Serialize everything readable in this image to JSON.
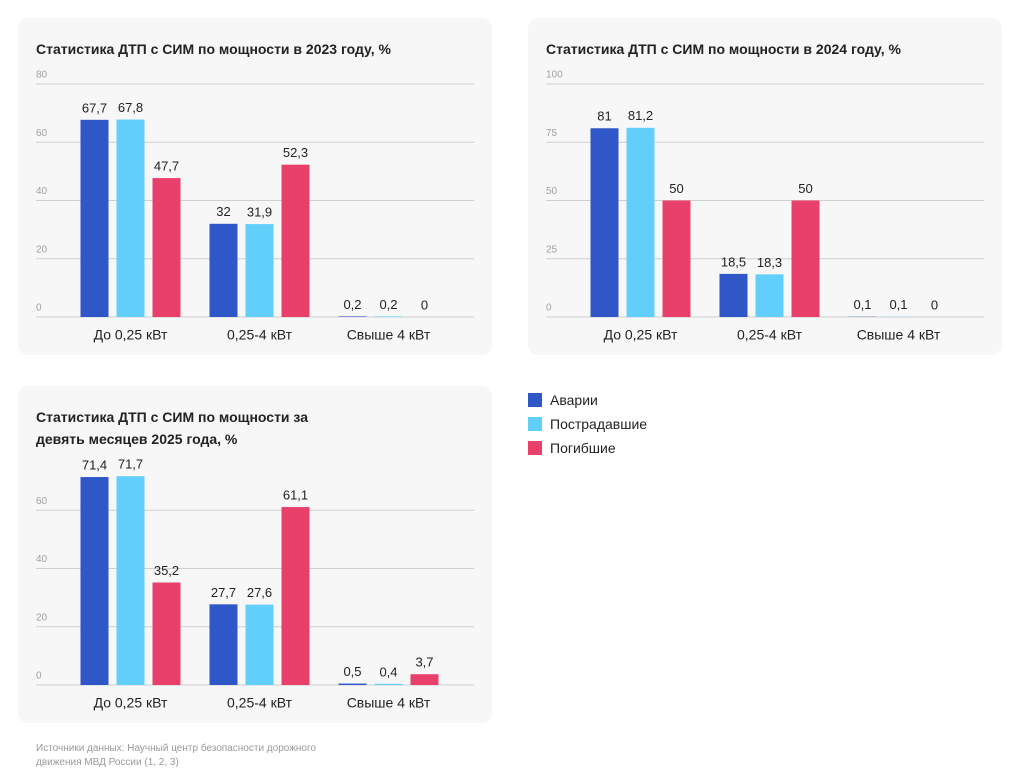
{
  "chart_data": [
    {
      "type": "bar",
      "title": "Статистика ДТП с СИМ по мощности в 2023 году, %",
      "categories": [
        "До 0,25 кВт",
        "0,25-4 кВт",
        "Свыше 4 кВт"
      ],
      "series": [
        {
          "values": [
            67.7,
            32,
            0.2
          ],
          "value_labels": [
            "67,7",
            "32",
            "0,2"
          ]
        },
        {
          "values": [
            67.8,
            31.9,
            0.2
          ],
          "value_labels": [
            "67,8",
            "31,9",
            "0,2"
          ]
        },
        {
          "values": [
            47.7,
            52.3,
            0
          ],
          "value_labels": [
            "47,7",
            "52,3",
            "0"
          ]
        }
      ],
      "ylim": [
        0,
        80
      ],
      "yticks": [
        0,
        20,
        40,
        60,
        80
      ],
      "grid": true
    },
    {
      "type": "bar",
      "title": "Статистика ДТП с СИМ по мощности в 2024 году, %",
      "categories": [
        "До 0,25 кВт",
        "0,25-4 кВт",
        "Свыше 4 кВт"
      ],
      "series": [
        {
          "values": [
            81,
            18.5,
            0.1
          ],
          "value_labels": [
            "81",
            "18,5",
            "0,1"
          ]
        },
        {
          "values": [
            81.2,
            18.3,
            0.1
          ],
          "value_labels": [
            "81,2",
            "18,3",
            "0,1"
          ]
        },
        {
          "values": [
            50,
            50,
            0
          ],
          "value_labels": [
            "50",
            "50",
            "0"
          ]
        }
      ],
      "ylim": [
        0,
        100
      ],
      "yticks": [
        0,
        25,
        50,
        75,
        100
      ],
      "grid": true
    },
    {
      "type": "bar",
      "title": "Статистика ДТП с СИМ по мощности за девять месяцев 2025 года, %",
      "categories": [
        "До 0,25 кВт",
        "0,25-4 кВт",
        "Свыше 4 кВт"
      ],
      "series": [
        {
          "values": [
            71.4,
            27.7,
            0.5
          ],
          "value_labels": [
            "71,4",
            "27,7",
            "0,5"
          ]
        },
        {
          "values": [
            71.7,
            27.6,
            0.4
          ],
          "value_labels": [
            "71,7",
            "27,6",
            "0,4"
          ]
        },
        {
          "values": [
            35.2,
            61.1,
            3.7
          ],
          "value_labels": [
            "35,2",
            "61,1",
            "3,7"
          ]
        }
      ],
      "ylim": [
        0,
        80
      ],
      "yticks": [
        0,
        20,
        40,
        60
      ],
      "grid": true
    }
  ],
  "legend": [
    {
      "name": "Аварии",
      "color": "#2f57c7"
    },
    {
      "name": "Пострадавшие",
      "color": "#62cffb"
    },
    {
      "name": "Погибшие",
      "color": "#e8406b"
    }
  ],
  "source": "Источники данных: Научный центр безопасности дорожного движения МВД России (1, 2, 3)"
}
